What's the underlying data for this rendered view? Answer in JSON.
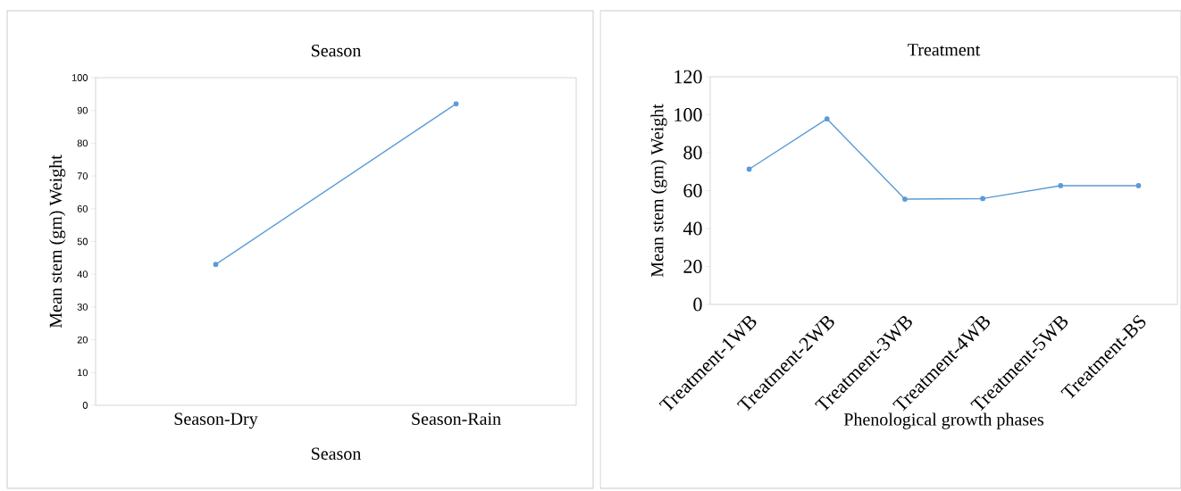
{
  "chart_data": [
    {
      "type": "line",
      "title": "Season",
      "xlabel": "Season",
      "ylabel": "Mean stem (gm) Weight",
      "categories": [
        "Season-Dry",
        "Season-Rain"
      ],
      "values": [
        43,
        92
      ],
      "color": "#5b9bd5",
      "ylim": [
        0,
        100
      ],
      "yticks": [
        0,
        10,
        20,
        30,
        40,
        50,
        60,
        70,
        80,
        90,
        100
      ],
      "marker": "circle",
      "grid": false
    },
    {
      "type": "line",
      "title": "Treatment",
      "xlabel": "Phenological growth phases",
      "ylabel": "Mean stem (gm) Weight",
      "categories": [
        "Treatment-1WB",
        "Treatment-2WB",
        "Treatment-3WB",
        "Treatment-4WB",
        "Treatment-5WB",
        "Treatment-BS"
      ],
      "values": [
        71.3,
        97.8,
        55.5,
        55.8,
        62.6,
        62.6
      ],
      "color": "#5b9bd5",
      "ylim": [
        0,
        120
      ],
      "yticks": [
        0,
        20,
        40,
        60,
        80,
        100,
        120
      ],
      "marker": "circle",
      "grid": false
    }
  ]
}
